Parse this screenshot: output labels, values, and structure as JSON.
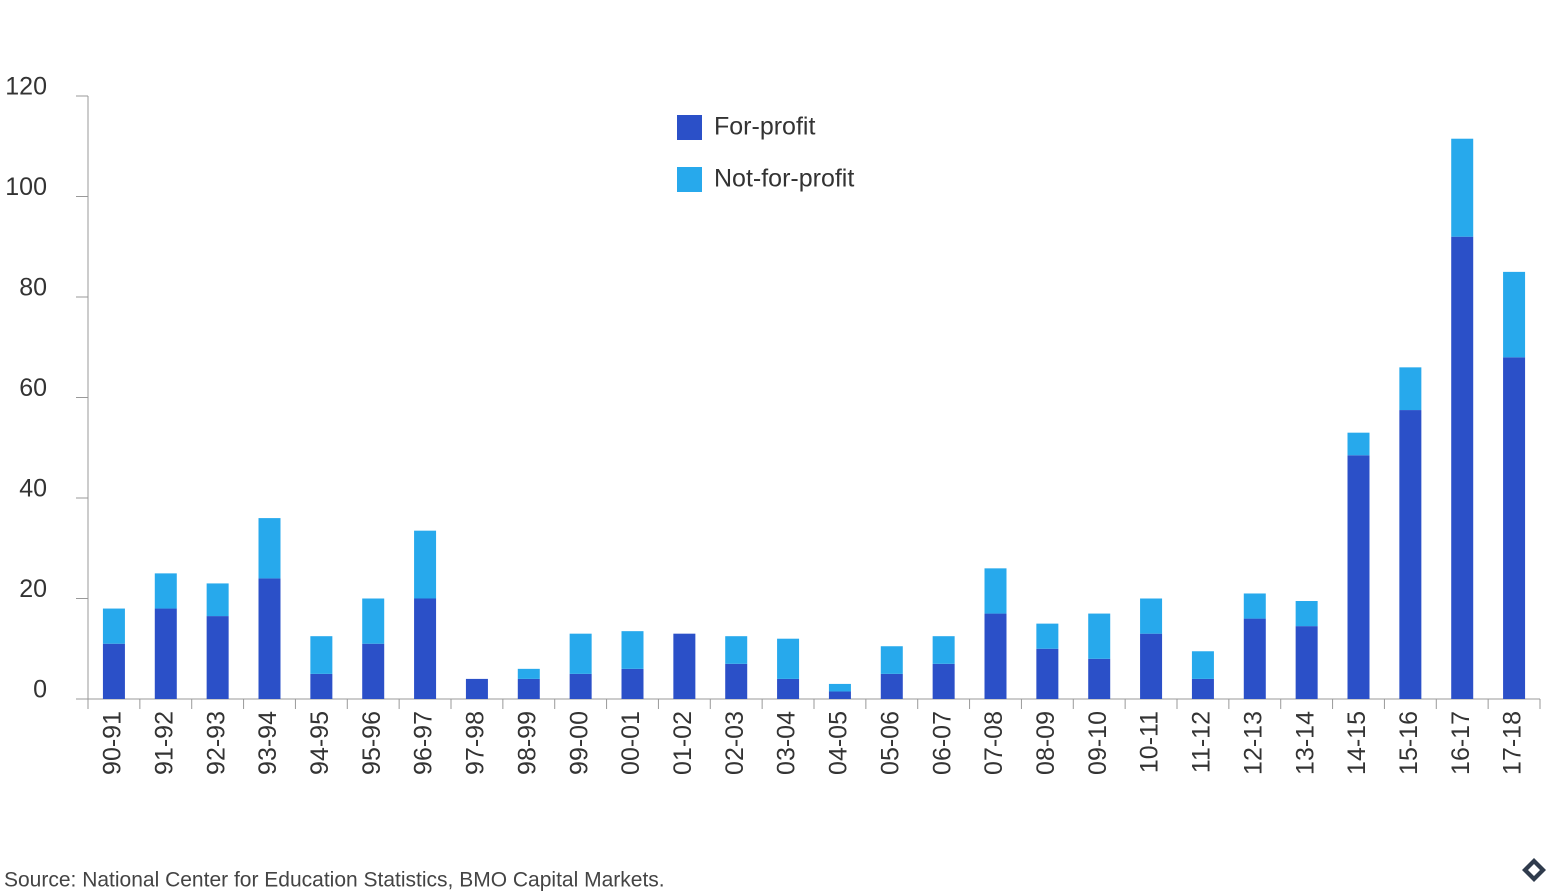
{
  "chart_data": {
    "type": "stacked-bar",
    "categories": [
      "90-91",
      "91-92",
      "92-93",
      "93-94",
      "94-95",
      "95-96",
      "96-97",
      "97-98",
      "98-99",
      "99-00",
      "00-01",
      "01-02",
      "02-03",
      "03-04",
      "04-05",
      "05-06",
      "06-07",
      "07-08",
      "08-09",
      "09-10",
      "10-11",
      "11-12",
      "12-13",
      "13-14",
      "14-15",
      "15-16",
      "16-17",
      "17-18"
    ],
    "series": [
      {
        "name": "For-profit",
        "color": "#2b50c8",
        "values": [
          11,
          18,
          16.5,
          24,
          5,
          11,
          20,
          4,
          4,
          5,
          6,
          13,
          7,
          4,
          1.5,
          5,
          7,
          17,
          10,
          8,
          13,
          4,
          16,
          14.5,
          48.5,
          57.5,
          92,
          68
        ]
      },
      {
        "name": "Not-for-profit",
        "color": "#27a9ec",
        "values": [
          7,
          7,
          6.5,
          12,
          7.5,
          9,
          13.5,
          0,
          2,
          8,
          7.5,
          0,
          5.5,
          8,
          1.5,
          5.5,
          5.5,
          9,
          5,
          9,
          7,
          5.5,
          5,
          5,
          4.5,
          8.5,
          19.5,
          17
        ]
      }
    ],
    "ylim": [
      0,
      120
    ],
    "yticks": [
      0,
      20,
      40,
      60,
      80,
      100,
      120
    ],
    "legend": "top-center",
    "grid": false,
    "source": "Source: National Center for Education Statistics, BMO Capital Markets."
  }
}
